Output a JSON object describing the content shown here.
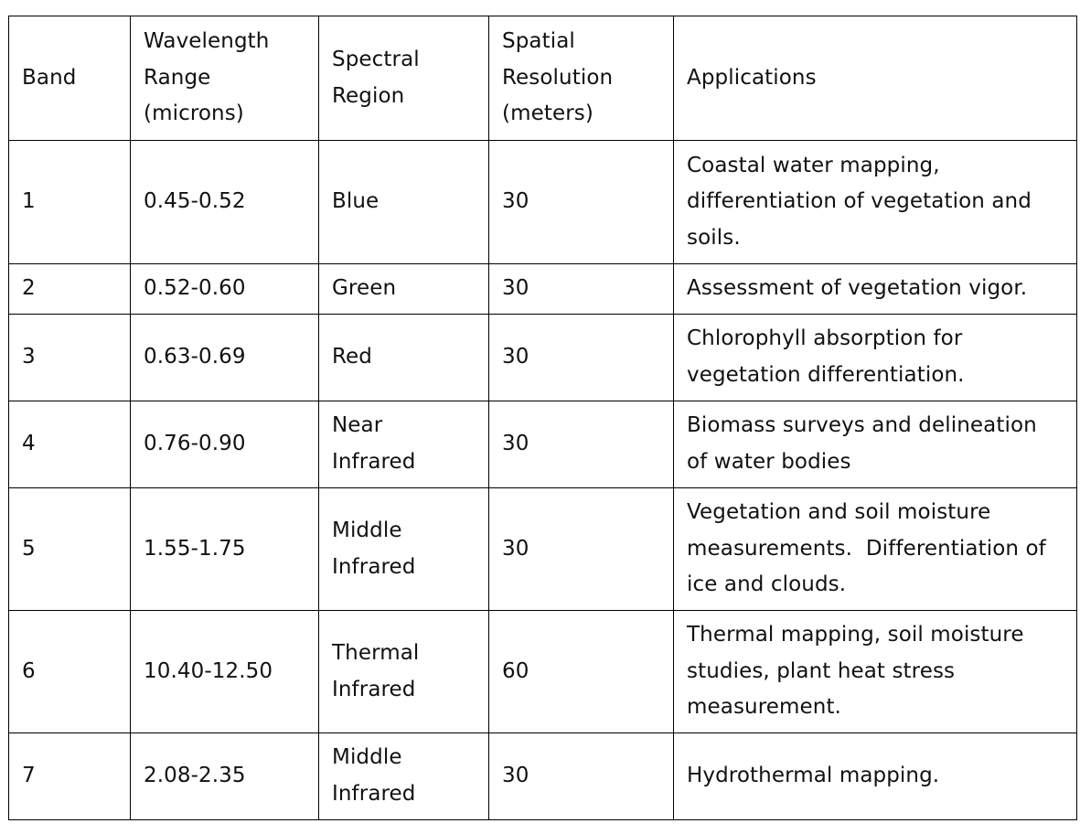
{
  "table": {
    "headers": [
      [
        "Band"
      ],
      [
        "Wavelength",
        "Range",
        "(microns)"
      ],
      [
        "Spectral",
        "Region"
      ],
      [
        "Spatial",
        "Resolution",
        "(meters)"
      ],
      [
        "Applications"
      ]
    ],
    "rows": [
      {
        "band": "1",
        "wavelength": "0.45-0.52",
        "region": [
          "Blue"
        ],
        "resolution": "30",
        "applications": [
          "Coastal water mapping,",
          "differentiation of vegetation and",
          "soils."
        ]
      },
      {
        "band": "2",
        "wavelength": "0.52-0.60",
        "region": [
          "Green"
        ],
        "resolution": "30",
        "applications": [
          "Assessment of vegetation vigor."
        ]
      },
      {
        "band": "3",
        "wavelength": "0.63-0.69",
        "region": [
          "Red"
        ],
        "resolution": "30",
        "applications": [
          "Chlorophyll absorption for",
          "vegetation differentiation."
        ]
      },
      {
        "band": "4",
        "wavelength": "0.76-0.90",
        "region": [
          "Near",
          "Infrared"
        ],
        "resolution": "30",
        "applications": [
          "Biomass surveys and delineation",
          "of water bodies"
        ]
      },
      {
        "band": "5",
        "wavelength": "1.55-1.75",
        "region": [
          "Middle",
          "Infrared"
        ],
        "resolution": "30",
        "applications": [
          "Vegetation and soil moisture",
          "measurements.  Differentiation of",
          "ice and clouds."
        ]
      },
      {
        "band": "6",
        "wavelength": "10.40-12.50",
        "region": [
          "Thermal",
          "Infrared"
        ],
        "resolution": "60",
        "applications": [
          "Thermal mapping, soil moisture",
          "studies, plant heat stress",
          "measurement."
        ]
      },
      {
        "band": "7",
        "wavelength": "2.08-2.35",
        "region": [
          "Middle",
          "Infrared"
        ],
        "resolution": "30",
        "applications": [
          "Hydrothermal mapping."
        ]
      }
    ]
  }
}
